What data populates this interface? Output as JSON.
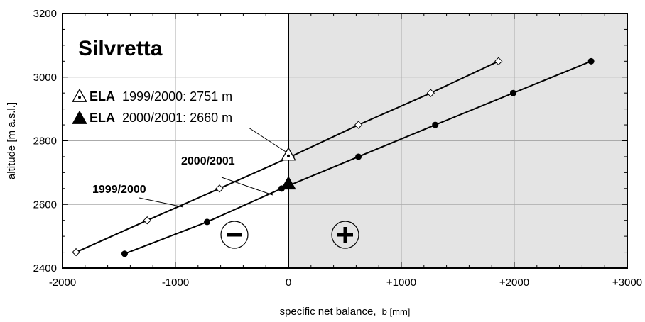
{
  "chart_data": {
    "type": "line",
    "title": "Silvretta",
    "xlabel": "specific net balance,",
    "xlabel_var": "b [mm]",
    "ylabel": "altitude [m a.s.l.]",
    "xlim": [
      -2000,
      3000
    ],
    "ylim": [
      2400,
      3200
    ],
    "x_ticks": [
      -2000,
      -1000,
      0,
      1000,
      2000,
      3000
    ],
    "x_tick_labels": [
      "-2000",
      "-1000",
      "0",
      "+1000",
      "+2000",
      "+3000"
    ],
    "y_ticks": [
      2400,
      2600,
      2800,
      3000,
      3200
    ],
    "y_tick_labels": [
      "2400",
      "2600",
      "2800",
      "3000",
      "3200"
    ],
    "grid": true,
    "shaded_region": {
      "x_from": 0,
      "x_to": 3000,
      "color": "#e4e4e4"
    },
    "series": [
      {
        "name": "1999/2000",
        "marker": "diamond-open",
        "x": [
          -1880,
          -1250,
          -610,
          20,
          620,
          1260,
          1860
        ],
        "y": [
          2450,
          2550,
          2650,
          2750,
          2850,
          2950,
          3050
        ]
      },
      {
        "name": "2000/2001",
        "marker": "circle-filled",
        "x": [
          -1450,
          -720,
          -60,
          620,
          1300,
          1990,
          2680
        ],
        "y": [
          2445,
          2545,
          2650,
          2750,
          2850,
          2950,
          3050
        ]
      }
    ],
    "ela": [
      {
        "label": "ELA",
        "text": "1999/2000: 2751 m",
        "x": 0,
        "y": 2751,
        "marker": "triangle-open-dot"
      },
      {
        "label": "ELA",
        "text": "2000/2001: 2660 m",
        "x": 0,
        "y": 2660,
        "marker": "triangle-filled"
      }
    ],
    "annotations": [
      {
        "text": "1999/2000",
        "bold": true
      },
      {
        "text": "2000/2001",
        "bold": true
      }
    ],
    "sign_symbols": [
      "−",
      "+"
    ],
    "colors": {
      "ink": "#000000",
      "grid": "#aaaaaa",
      "shade": "#e4e4e4"
    }
  }
}
